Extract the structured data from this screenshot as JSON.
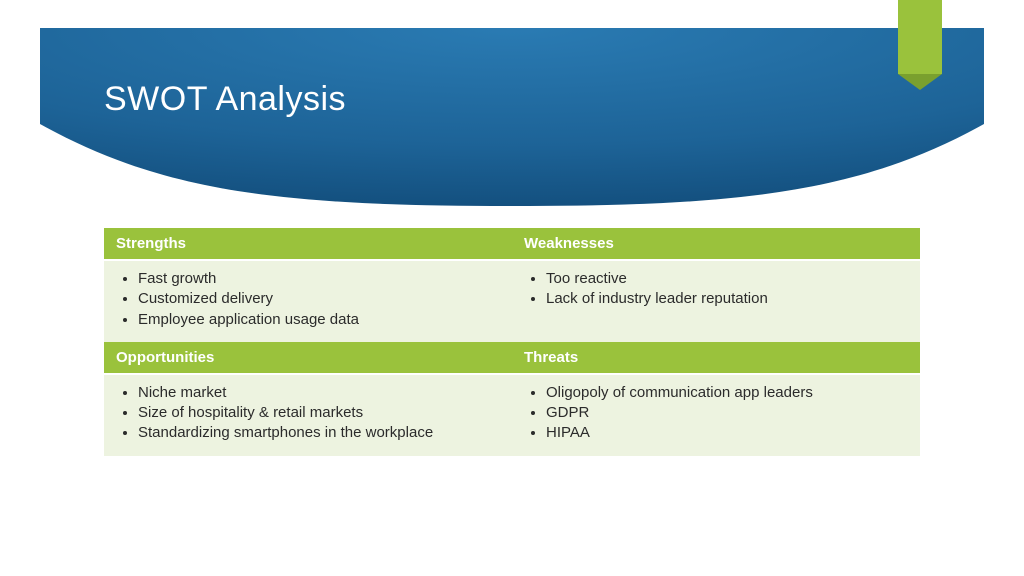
{
  "title": "SWOT Analysis",
  "colors": {
    "banner_grad_start": "#195b8f",
    "banner_grad_mid": "#1f6ea9",
    "banner_grad_end": "#0e4977",
    "accent": "#9ac23c",
    "accent_dark": "#7aa02e",
    "header_bg": "#9ac23c",
    "cell_bg": "#edf3e0",
    "cell_border": "#ffffff",
    "text": "#2b2b2b"
  },
  "swot": {
    "q1": {
      "header": "Strengths",
      "items": [
        "Fast growth",
        "Customized delivery",
        "Employee application usage data"
      ]
    },
    "q2": {
      "header": "Weaknesses",
      "items": [
        "Too reactive",
        "Lack of industry leader reputation"
      ]
    },
    "q3": {
      "header": "Opportunities",
      "items": [
        "Niche market",
        "Size of hospitality & retail markets",
        "Standardizing smartphones in the workplace"
      ]
    },
    "q4": {
      "header": "Threats",
      "items": [
        "Oligopoly of communication app leaders",
        "GDPR",
        "HIPAA"
      ]
    }
  }
}
